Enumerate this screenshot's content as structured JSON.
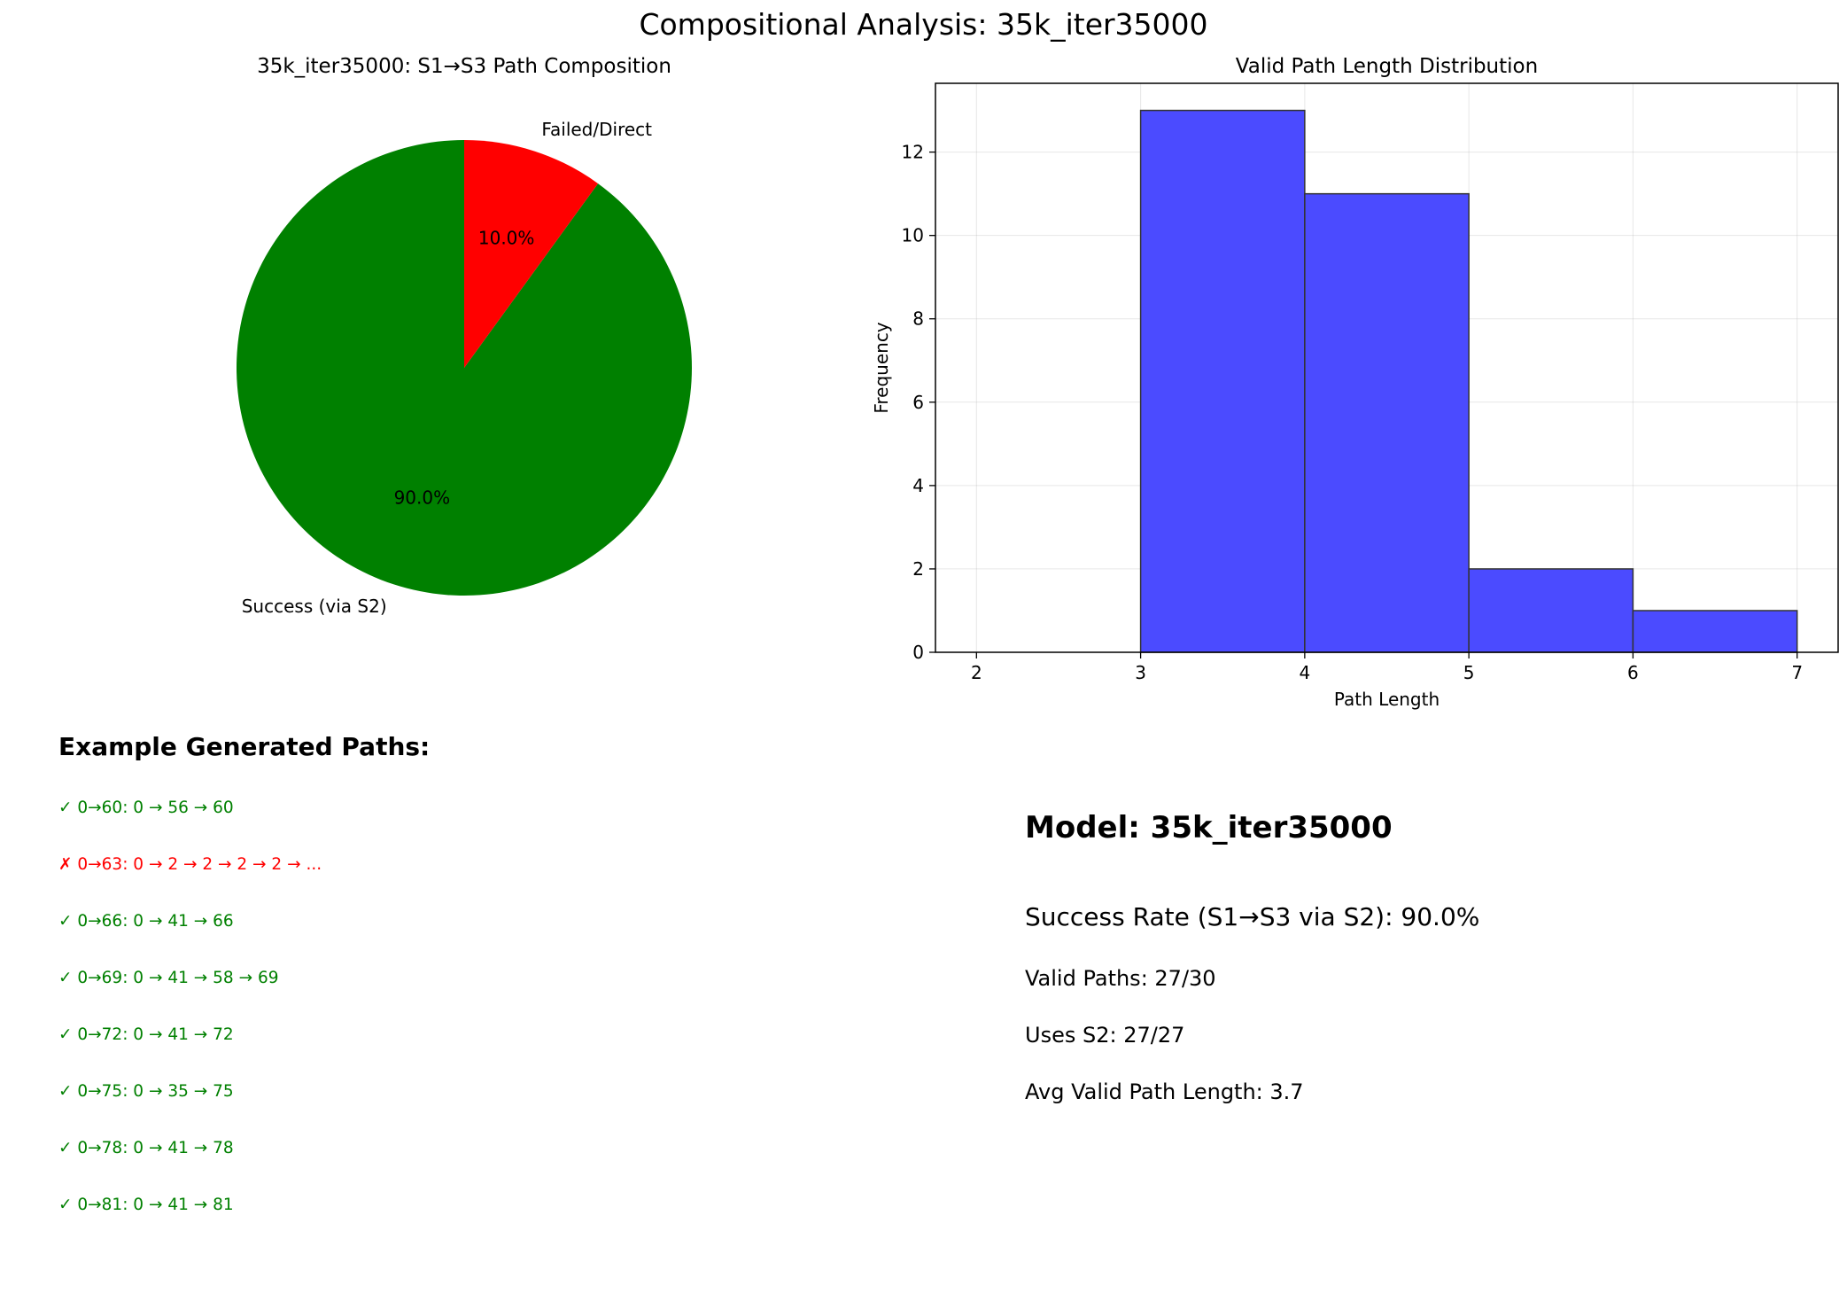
{
  "figure": {
    "title": "Compositional Analysis: 35k_iter35000"
  },
  "chart_data": [
    {
      "type": "pie",
      "title": "35k_iter35000: S1→S3 Path Composition",
      "slices": [
        {
          "label": "Success (via S2)",
          "value": 90.0,
          "pct_label": "90.0%",
          "color": "#008000"
        },
        {
          "label": "Failed/Direct",
          "value": 10.0,
          "pct_label": "10.0%",
          "color": "#ff0000"
        }
      ],
      "start_angle_deg": 90
    },
    {
      "type": "bar",
      "title": "Valid Path Length Distribution",
      "xlabel": "Path Length",
      "ylabel": "Frequency",
      "bins": [
        {
          "from": 2,
          "to": 3,
          "value": 0
        },
        {
          "from": 3,
          "to": 4,
          "value": 13
        },
        {
          "from": 4,
          "to": 5,
          "value": 11
        },
        {
          "from": 5,
          "to": 6,
          "value": 2
        },
        {
          "from": 6,
          "to": 7,
          "value": 1
        }
      ],
      "xlim": [
        1.75,
        7.25
      ],
      "ylim": [
        0,
        13.65
      ],
      "xticks": [
        2,
        3,
        4,
        5,
        6,
        7
      ],
      "yticks": [
        0,
        2,
        4,
        6,
        8,
        10,
        12
      ],
      "grid": true,
      "bar_color": "#4b4bff"
    }
  ],
  "examples": {
    "heading": "Example Generated Paths:",
    "items": [
      {
        "text": "✓ 0→60: 0 → 56 → 60",
        "ok": true
      },
      {
        "text": "✗ 0→63: 0 → 2 → 2 → 2 → 2 → ...",
        "ok": false
      },
      {
        "text": "✓ 0→66: 0 → 41 → 66",
        "ok": true
      },
      {
        "text": "✓ 0→69: 0 → 41 → 58 → 69",
        "ok": true
      },
      {
        "text": "✓ 0→72: 0 → 41 → 72",
        "ok": true
      },
      {
        "text": "✓ 0→75: 0 → 35 → 75",
        "ok": true
      },
      {
        "text": "✓ 0→78: 0 → 41 → 78",
        "ok": true
      },
      {
        "text": "✓ 0→81: 0 → 41 → 81",
        "ok": true
      }
    ],
    "ok_color": "#008000",
    "fail_color": "#ff0000"
  },
  "stats": {
    "model": "Model: 35k_iter35000",
    "success_rate": "Success Rate (S1→S3 via S2): 90.0%",
    "valid_paths": "Valid Paths: 27/30",
    "uses_s2": "Uses S2: 27/27",
    "avg_length": "Avg Valid Path Length: 3.7"
  }
}
